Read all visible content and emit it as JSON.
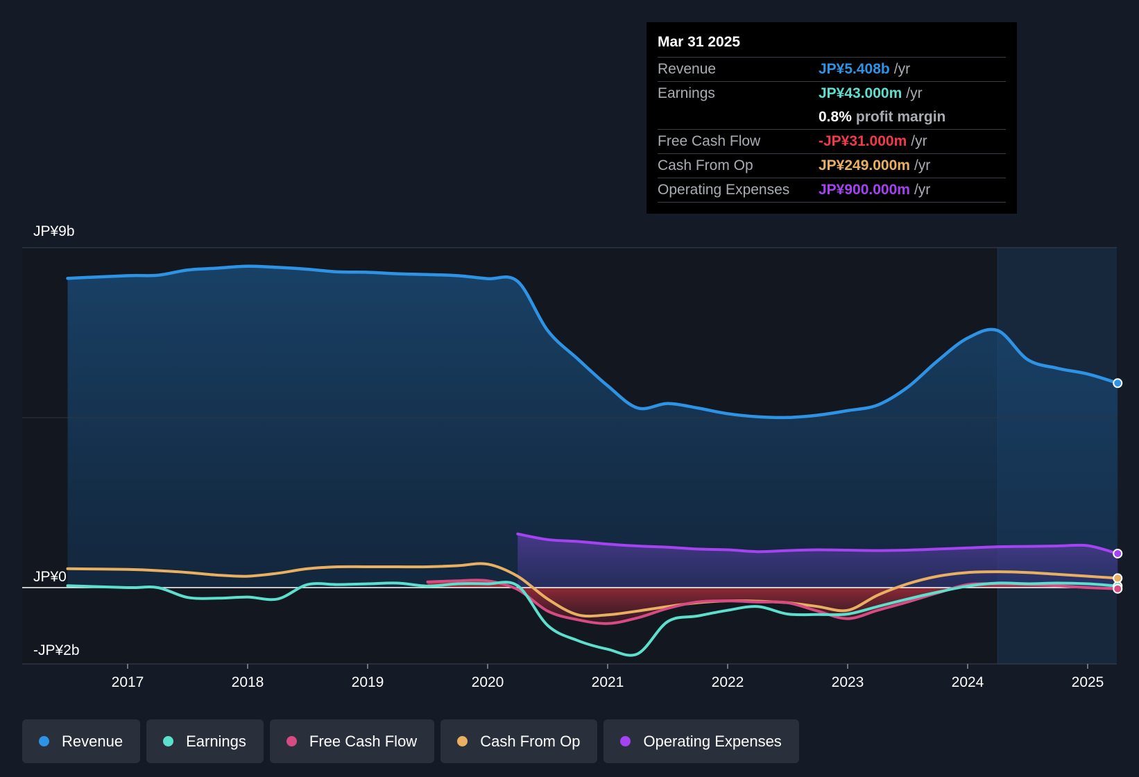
{
  "colors": {
    "background": "#151b26",
    "revenue": "#2e93e5",
    "earnings": "#5ce0cd",
    "free_cash_flow": "#d64c82",
    "cash_from_op": "#e9b062",
    "operating_expenses": "#a543f2",
    "negative_text": "#f2384a"
  },
  "tooltip": {
    "date": "Mar 31 2025",
    "rows": [
      {
        "label": "Revenue",
        "value": "JP¥5.408b",
        "unit": "/yr"
      },
      {
        "label": "Earnings",
        "value": "JP¥43.000m",
        "unit": "/yr"
      },
      {
        "label": "",
        "value": "0.8%",
        "unit": "profit margin"
      },
      {
        "label": "Free Cash Flow",
        "value": "-JP¥31.000m",
        "unit": "/yr"
      },
      {
        "label": "Cash From Op",
        "value": "JP¥249.000m",
        "unit": "/yr"
      },
      {
        "label": "Operating Expenses",
        "value": "JP¥900.000m",
        "unit": "/yr"
      }
    ]
  },
  "legend": [
    {
      "label": "Revenue",
      "icon": "revenue-dot-icon"
    },
    {
      "label": "Earnings",
      "icon": "earnings-dot-icon"
    },
    {
      "label": "Free Cash Flow",
      "icon": "free-cash-flow-dot-icon"
    },
    {
      "label": "Cash From Op",
      "icon": "cash-from-op-dot-icon"
    },
    {
      "label": "Operating Expenses",
      "icon": "operating-expenses-dot-icon"
    }
  ],
  "chart_data": {
    "type": "area",
    "y_tick_labels": [
      "JP¥9b",
      "JP¥0",
      "-JP¥2b"
    ],
    "x_tick_labels": [
      "2017",
      "2018",
      "2019",
      "2020",
      "2021",
      "2022",
      "2023",
      "2024",
      "2025"
    ],
    "xlim": [
      2016.5,
      2025.25
    ],
    "ylim": [
      -2,
      9
    ],
    "grid": true,
    "legend_position": "bottom",
    "highlight_start": 2024.25,
    "series": [
      {
        "name": "Revenue",
        "x": [
          2016.5,
          2017.0,
          2017.25,
          2017.5,
          2017.75,
          2018.0,
          2018.25,
          2018.5,
          2018.75,
          2019.0,
          2019.25,
          2019.5,
          2019.75,
          2020.0,
          2020.25,
          2020.5,
          2020.75,
          2021.0,
          2021.25,
          2021.5,
          2021.75,
          2022.0,
          2022.25,
          2022.5,
          2022.75,
          2023.0,
          2023.25,
          2023.5,
          2023.75,
          2024.0,
          2024.25,
          2024.5,
          2024.75,
          2025.0,
          2025.25
        ],
        "values": [
          8.18,
          8.25,
          8.26,
          8.4,
          8.45,
          8.5,
          8.47,
          8.42,
          8.35,
          8.34,
          8.3,
          8.28,
          8.25,
          8.17,
          8.1,
          6.8,
          6.05,
          5.34,
          4.75,
          4.87,
          4.75,
          4.6,
          4.52,
          4.5,
          4.56,
          4.68,
          4.83,
          5.3,
          6.0,
          6.6,
          6.8,
          6.03,
          5.8,
          5.65,
          5.408
        ]
      },
      {
        "name": "Earnings",
        "x": [
          2016.5,
          2017.0,
          2017.25,
          2017.5,
          2017.75,
          2018.0,
          2018.25,
          2018.5,
          2018.75,
          2019.0,
          2019.25,
          2019.5,
          2019.75,
          2020.0,
          2020.25,
          2020.5,
          2020.75,
          2021.0,
          2021.25,
          2021.5,
          2021.75,
          2022.0,
          2022.25,
          2022.5,
          2022.75,
          2023.0,
          2023.25,
          2023.5,
          2023.75,
          2024.0,
          2024.25,
          2024.5,
          2024.75,
          2025.0,
          2025.25
        ],
        "values": [
          0.05,
          0.0,
          0.0,
          -0.26,
          -0.28,
          -0.25,
          -0.3,
          0.08,
          0.08,
          0.1,
          0.12,
          0.04,
          0.1,
          0.1,
          0.05,
          -1.0,
          -1.4,
          -1.63,
          -1.75,
          -0.9,
          -0.75,
          -0.6,
          -0.5,
          -0.7,
          -0.71,
          -0.7,
          -0.5,
          -0.3,
          -0.12,
          0.04,
          0.12,
          0.1,
          0.12,
          0.1,
          0.043
        ]
      },
      {
        "name": "Free Cash Flow",
        "x": [
          2019.5,
          2019.75,
          2020.0,
          2020.25,
          2020.5,
          2020.75,
          2021.0,
          2021.25,
          2021.5,
          2021.75,
          2022.0,
          2022.25,
          2022.5,
          2022.75,
          2023.0,
          2023.25,
          2023.5,
          2023.75,
          2024.0,
          2024.25,
          2024.5,
          2024.75,
          2025.0,
          2025.25
        ],
        "values": [
          0.15,
          0.18,
          0.18,
          -0.05,
          -0.62,
          -0.85,
          -0.95,
          -0.8,
          -0.55,
          -0.38,
          -0.35,
          -0.38,
          -0.4,
          -0.62,
          -0.82,
          -0.6,
          -0.38,
          -0.14,
          0.08,
          0.1,
          0.09,
          0.05,
          0.0,
          -0.031
        ]
      },
      {
        "name": "Cash From Op",
        "x": [
          2016.5,
          2017.0,
          2017.25,
          2017.5,
          2017.75,
          2018.0,
          2018.25,
          2018.5,
          2018.75,
          2019.0,
          2019.25,
          2019.5,
          2019.75,
          2020.0,
          2020.25,
          2020.5,
          2020.75,
          2021.0,
          2021.25,
          2021.5,
          2021.75,
          2022.0,
          2022.25,
          2022.5,
          2022.75,
          2023.0,
          2023.25,
          2023.5,
          2023.75,
          2024.0,
          2024.25,
          2024.5,
          2024.75,
          2025.0,
          2025.25
        ],
        "values": [
          0.5,
          0.48,
          0.45,
          0.4,
          0.33,
          0.3,
          0.38,
          0.5,
          0.55,
          0.55,
          0.55,
          0.55,
          0.58,
          0.62,
          0.3,
          -0.3,
          -0.72,
          -0.72,
          -0.62,
          -0.5,
          -0.4,
          -0.35,
          -0.36,
          -0.4,
          -0.5,
          -0.6,
          -0.2,
          0.1,
          0.3,
          0.4,
          0.42,
          0.4,
          0.35,
          0.3,
          0.249
        ]
      },
      {
        "name": "Operating Expenses",
        "x": [
          2020.25,
          2020.5,
          2020.75,
          2021.0,
          2021.25,
          2021.5,
          2021.75,
          2022.0,
          2022.25,
          2022.5,
          2022.75,
          2023.0,
          2023.25,
          2023.5,
          2023.75,
          2024.0,
          2024.25,
          2024.5,
          2024.75,
          2025.0,
          2025.25
        ],
        "values": [
          1.42,
          1.27,
          1.22,
          1.15,
          1.1,
          1.07,
          1.02,
          1.0,
          0.95,
          0.98,
          1.0,
          0.99,
          0.98,
          0.99,
          1.02,
          1.05,
          1.08,
          1.09,
          1.1,
          1.11,
          0.9
        ]
      }
    ]
  }
}
